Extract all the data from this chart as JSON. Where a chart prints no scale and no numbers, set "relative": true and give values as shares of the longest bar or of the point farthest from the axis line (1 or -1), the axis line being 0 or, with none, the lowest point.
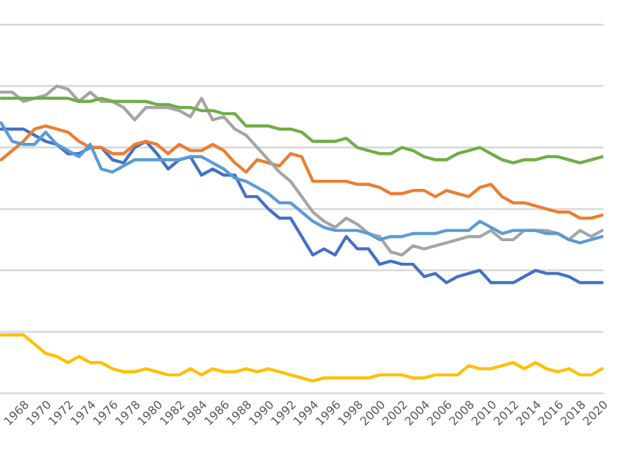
{
  "chart_data": {
    "type": "line",
    "relative": true,
    "grid": "y",
    "categories": [
      null,
      null,
      "1968",
      null,
      "1970",
      null,
      "1972",
      null,
      "1974",
      null,
      "1976",
      null,
      "1978",
      null,
      "1980",
      null,
      "1982",
      null,
      "1984",
      null,
      "1986",
      null,
      "1988",
      null,
      "1990",
      null,
      "1992",
      null,
      "1994",
      null,
      "1996",
      null,
      "1998",
      null,
      "2000",
      null,
      "2002",
      null,
      "2004",
      null,
      "2006",
      null,
      "2008",
      null,
      "2010",
      null,
      "2012",
      null,
      "2014",
      null,
      "2016",
      null,
      "2018",
      null,
      "2020"
    ],
    "series": [
      {
        "color": "#4472c4",
        "values": [
          0.86,
          0.86,
          0.86,
          0.84,
          0.82,
          0.81,
          0.78,
          0.78,
          0.8,
          0.8,
          0.76,
          0.75,
          0.8,
          0.82,
          0.78,
          0.73,
          0.76,
          0.77,
          0.71,
          0.73,
          0.71,
          0.71,
          0.64,
          0.64,
          0.6,
          0.57,
          0.57,
          0.51,
          0.45,
          0.47,
          0.45,
          0.51,
          0.47,
          0.47,
          0.42,
          0.43,
          0.42,
          0.42,
          0.38,
          0.39,
          0.36,
          0.38,
          0.39,
          0.4,
          0.36,
          0.36,
          0.36,
          0.38,
          0.4,
          0.39,
          0.39,
          0.38,
          0.36,
          0.36,
          0.36
        ]
      },
      {
        "color": "#ed7d31",
        "values": [
          0.76,
          0.79,
          0.82,
          0.86,
          0.87,
          0.86,
          0.85,
          0.82,
          0.8,
          0.8,
          0.78,
          0.78,
          0.81,
          0.82,
          0.81,
          0.78,
          0.81,
          0.79,
          0.79,
          0.81,
          0.79,
          0.75,
          0.72,
          0.76,
          0.75,
          0.74,
          0.78,
          0.77,
          0.69,
          0.69,
          0.69,
          0.69,
          0.68,
          0.68,
          0.67,
          0.65,
          0.65,
          0.66,
          0.66,
          0.64,
          0.66,
          0.65,
          0.64,
          0.67,
          0.68,
          0.64,
          0.62,
          0.62,
          0.61,
          0.6,
          0.59,
          0.59,
          0.57,
          0.57,
          0.58
        ]
      },
      {
        "color": "#a5a5a5",
        "values": [
          0.98,
          0.98,
          0.95,
          0.96,
          0.97,
          1.0,
          0.99,
          0.95,
          0.98,
          0.95,
          0.95,
          0.93,
          0.89,
          0.93,
          0.93,
          0.93,
          0.92,
          0.9,
          0.96,
          0.89,
          0.9,
          0.86,
          0.84,
          0.8,
          0.76,
          0.72,
          0.69,
          0.64,
          0.59,
          0.56,
          0.54,
          0.57,
          0.55,
          0.52,
          0.51,
          0.46,
          0.45,
          0.48,
          0.47,
          0.48,
          0.49,
          0.5,
          0.51,
          0.51,
          0.53,
          0.5,
          0.5,
          0.53,
          0.53,
          0.53,
          0.52,
          0.5,
          0.53,
          0.51,
          0.53
        ]
      },
      {
        "color": "#ffc000",
        "values": [
          0.19,
          0.19,
          0.19,
          0.16,
          0.13,
          0.12,
          0.1,
          0.12,
          0.1,
          0.1,
          0.08,
          0.07,
          0.07,
          0.08,
          0.07,
          0.06,
          0.06,
          0.08,
          0.06,
          0.08,
          0.07,
          0.07,
          0.08,
          0.07,
          0.08,
          0.07,
          0.06,
          0.05,
          0.04,
          0.05,
          0.05,
          0.05,
          0.05,
          0.05,
          0.06,
          0.06,
          0.06,
          0.05,
          0.05,
          0.06,
          0.06,
          0.06,
          0.09,
          0.08,
          0.08,
          0.09,
          0.1,
          0.08,
          0.1,
          0.08,
          0.07,
          0.08,
          0.06,
          0.06,
          0.08
        ]
      },
      {
        "color": "#5b9bd5",
        "values": [
          0.88,
          0.82,
          0.81,
          0.81,
          0.85,
          0.81,
          0.79,
          0.77,
          0.81,
          0.73,
          0.72,
          0.74,
          0.76,
          0.76,
          0.76,
          0.76,
          0.76,
          0.77,
          0.77,
          0.75,
          0.73,
          0.7,
          0.69,
          0.67,
          0.65,
          0.62,
          0.62,
          0.59,
          0.56,
          0.54,
          0.53,
          0.53,
          0.53,
          0.52,
          0.5,
          0.51,
          0.51,
          0.52,
          0.52,
          0.52,
          0.53,
          0.53,
          0.53,
          0.56,
          0.54,
          0.52,
          0.53,
          0.53,
          0.53,
          0.52,
          0.52,
          0.5,
          0.49,
          0.5,
          0.51
        ]
      },
      {
        "color": "#70ad47",
        "values": [
          0.96,
          0.96,
          0.96,
          0.96,
          0.96,
          0.96,
          0.96,
          0.95,
          0.95,
          0.96,
          0.95,
          0.95,
          0.95,
          0.95,
          0.94,
          0.94,
          0.93,
          0.93,
          0.92,
          0.92,
          0.91,
          0.91,
          0.87,
          0.87,
          0.87,
          0.86,
          0.86,
          0.85,
          0.82,
          0.82,
          0.82,
          0.83,
          0.8,
          0.79,
          0.78,
          0.78,
          0.8,
          0.79,
          0.77,
          0.76,
          0.76,
          0.78,
          0.79,
          0.8,
          0.78,
          0.76,
          0.75,
          0.76,
          0.76,
          0.77,
          0.77,
          0.76,
          0.75,
          0.76,
          0.77
        ]
      }
    ]
  }
}
